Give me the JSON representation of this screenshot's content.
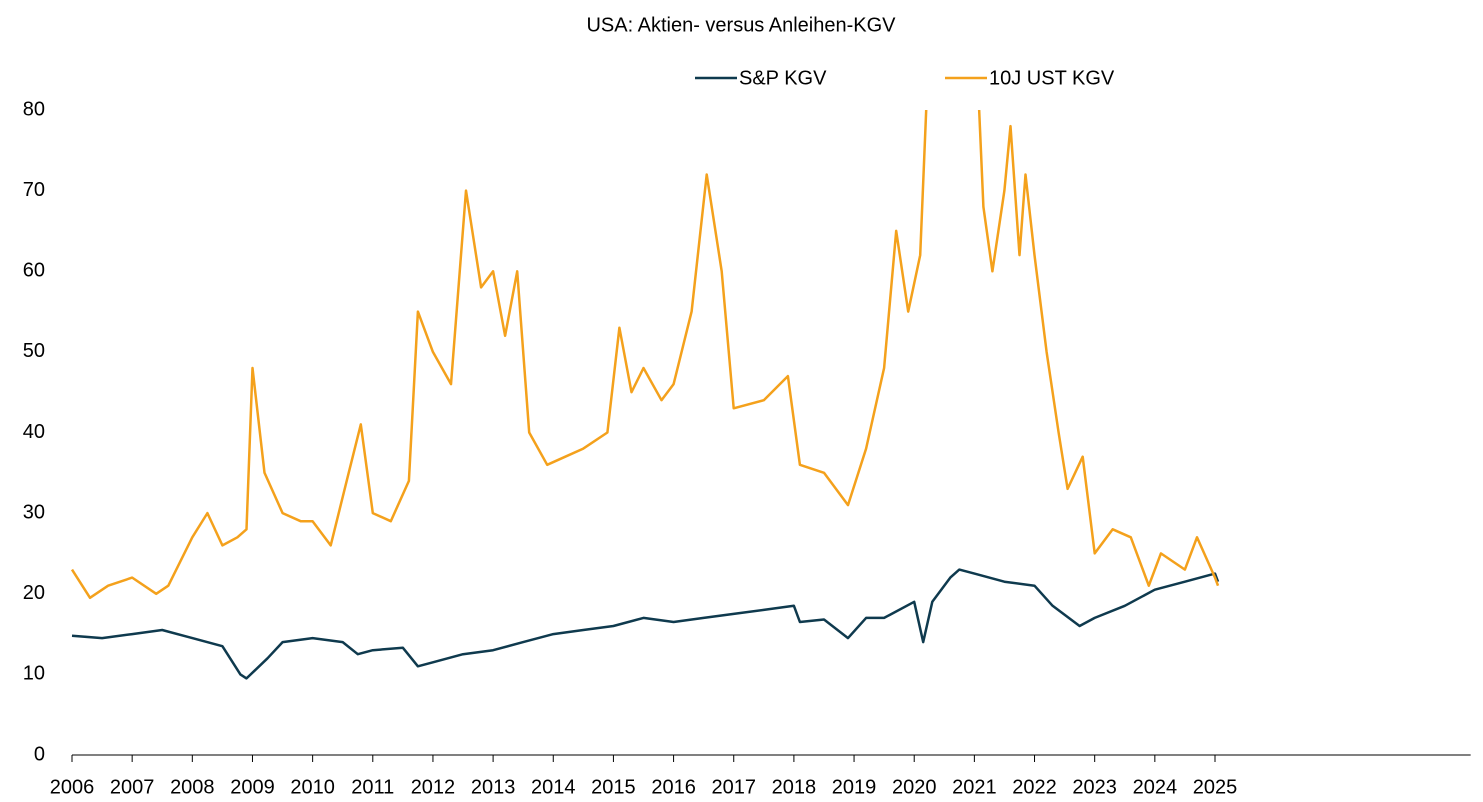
{
  "chart_data": {
    "type": "line",
    "title": "USA: Aktien- versus Anleihen-KGV",
    "xlim": [
      2006,
      2029.25
    ],
    "xticks": [
      2006,
      2007,
      2008,
      2009,
      2010,
      2011,
      2012,
      2013,
      2014,
      2015,
      2016,
      2017,
      2018,
      2019,
      2020,
      2021,
      2022,
      2023,
      2024,
      2025
    ],
    "ylim": [
      0,
      80
    ],
    "yticks": [
      0,
      10,
      20,
      30,
      40,
      50,
      60,
      70,
      80
    ],
    "grid": false,
    "legend": "top",
    "series": [
      {
        "name": "S&P KGV",
        "color": "#0f3a4e",
        "x": [
          2006,
          2006.5,
          2007,
          2007.5,
          2008,
          2008.5,
          2008.8,
          2008.9,
          2009.25,
          2009.5,
          2010,
          2010.5,
          2010.75,
          2011,
          2011.5,
          2011.75,
          2012,
          2012.5,
          2013,
          2013.5,
          2014,
          2014.5,
          2015,
          2015.5,
          2016,
          2016.5,
          2017,
          2017.5,
          2018,
          2018.1,
          2018.5,
          2018.9,
          2019.2,
          2019.5,
          2020,
          2020.15,
          2020.3,
          2020.6,
          2020.75,
          2021,
          2021.5,
          2022,
          2022.3,
          2022.75,
          2023,
          2023.5,
          2024,
          2024.5,
          2025,
          2025.05
        ],
        "values": [
          14.8,
          14.5,
          15,
          15.5,
          14.5,
          13.5,
          10,
          9.5,
          12,
          14,
          14.5,
          14,
          12.5,
          13,
          13.3,
          11,
          11.5,
          12.5,
          13,
          14,
          15,
          15.5,
          16,
          17,
          16.5,
          17,
          17.5,
          18,
          18.5,
          16.5,
          16.8,
          14.5,
          17,
          17,
          19,
          14,
          19,
          22,
          23,
          22.5,
          21.5,
          21,
          18.5,
          16,
          17,
          18.5,
          20.5,
          21.5,
          22.5,
          21.5
        ]
      },
      {
        "name": "10J UST KGV",
        "color": "#f4a11c",
        "x": [
          2006,
          2006.3,
          2006.6,
          2007,
          2007.4,
          2007.6,
          2008,
          2008.25,
          2008.5,
          2008.75,
          2008.9,
          2009,
          2009.2,
          2009.5,
          2009.8,
          2010,
          2010.3,
          2010.6,
          2010.8,
          2011,
          2011.3,
          2011.6,
          2011.75,
          2012,
          2012.3,
          2012.55,
          2012.8,
          2013,
          2013.2,
          2013.4,
          2013.6,
          2013.9,
          2014.2,
          2014.5,
          2014.9,
          2015.1,
          2015.3,
          2015.5,
          2015.8,
          2016,
          2016.3,
          2016.55,
          2016.8,
          2017,
          2017.5,
          2017.9,
          2018.1,
          2018.5,
          2018.9,
          2019.2,
          2019.5,
          2019.7,
          2019.9,
          2020.1,
          2020.2,
          2020.4,
          2020.8,
          2021.05,
          2021.15,
          2021.3,
          2021.5,
          2021.6,
          2021.75,
          2021.85,
          2022,
          2022.2,
          2022.4,
          2022.55,
          2022.8,
          2023,
          2023.3,
          2023.6,
          2023.9,
          2024.1,
          2024.5,
          2024.7,
          2025,
          2025.05
        ],
        "values": [
          23,
          19.5,
          21,
          22,
          20,
          21,
          27,
          30,
          26,
          27,
          28,
          48,
          35,
          30,
          29,
          29,
          26,
          35,
          41,
          30,
          29,
          34,
          55,
          50,
          46,
          70,
          58,
          60,
          52,
          60,
          40,
          36,
          37,
          38,
          40,
          53,
          45,
          48,
          44,
          46,
          55,
          72,
          60,
          43,
          44,
          47,
          36,
          35,
          31,
          38,
          48,
          65,
          55,
          62,
          80,
          110,
          120,
          85,
          68,
          60,
          70,
          78,
          62,
          72,
          62,
          50,
          40,
          33,
          37,
          25,
          28,
          27,
          21,
          25,
          23,
          27,
          22,
          21
        ]
      }
    ]
  }
}
